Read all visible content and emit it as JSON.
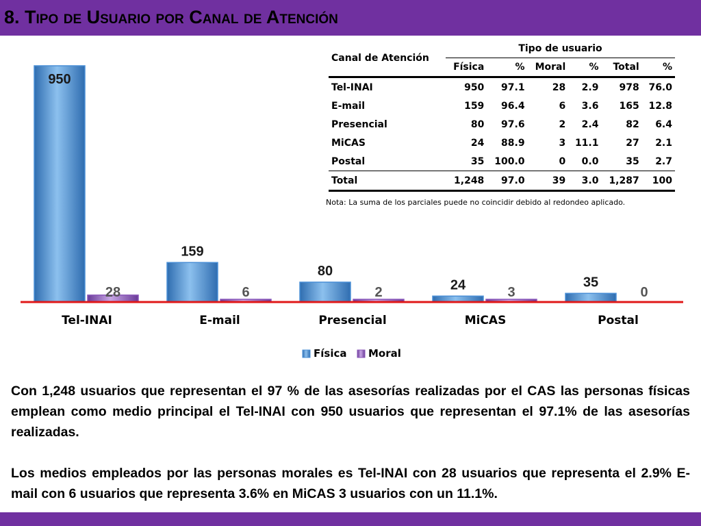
{
  "slide": {
    "title": "8. Tipo de Usuario por Canal de Atención"
  },
  "colors": {
    "header": "#7030a0",
    "fisica": "#4a8fd6",
    "moral": "#8a56b8",
    "baseline": "#e01818"
  },
  "chart_data": {
    "type": "bar",
    "categories": [
      "Tel-INAI",
      "E-mail",
      "Presencial",
      "MiCAS",
      "Postal"
    ],
    "series": [
      {
        "name": "Física",
        "values": [
          950,
          159,
          80,
          24,
          35
        ]
      },
      {
        "name": "Moral",
        "values": [
          28,
          6,
          2,
          3,
          0
        ]
      }
    ],
    "data_labels": true,
    "legend_position": "bottom",
    "ylim": [
      0,
      950
    ],
    "y_axis_visible": false,
    "grid": false
  },
  "table": {
    "channel_header": "Canal de Atención",
    "group_header": "Tipo de usuario",
    "sub_headers": [
      "Física",
      "%",
      "Moral",
      "%",
      "Total",
      "%"
    ],
    "rows": [
      {
        "label": "Tel-INAI",
        "cells": [
          "950",
          "97.1",
          "28",
          "2.9",
          "978",
          "76.0"
        ]
      },
      {
        "label": "E-mail",
        "cells": [
          "159",
          "96.4",
          "6",
          "3.6",
          "165",
          "12.8"
        ]
      },
      {
        "label": "Presencial",
        "cells": [
          "80",
          "97.6",
          "2",
          "2.4",
          "82",
          "6.4"
        ]
      },
      {
        "label": "MiCAS",
        "cells": [
          "24",
          "88.9",
          "3",
          "11.1",
          "27",
          "2.1"
        ]
      },
      {
        "label": "Postal",
        "cells": [
          "35",
          "100.0",
          "0",
          "0.0",
          "35",
          "2.7"
        ]
      }
    ],
    "total": {
      "label": "Total",
      "cells": [
        "1,248",
        "97.0",
        "39",
        "3.0",
        "1,287",
        "100"
      ]
    },
    "note": "Nota: La suma de los parciales puede no coincidir debido al redondeo aplicado."
  },
  "summary": {
    "paragraph_1": "Con 1,248 usuarios que representan el 97 % de las asesorías realizadas por el CAS las personas físicas emplean como medio principal el Tel-INAI con 950 usuarios que representan el 97.1% de las asesorías realizadas.",
    "paragraph_2": "Los medios empleados por las personas morales es Tel-INAI con 28 usuarios que representa el 2.9%  E-mail con 6 usuarios que representa 3.6%  en MiCAS 3 usuarios con un 11.1%."
  }
}
